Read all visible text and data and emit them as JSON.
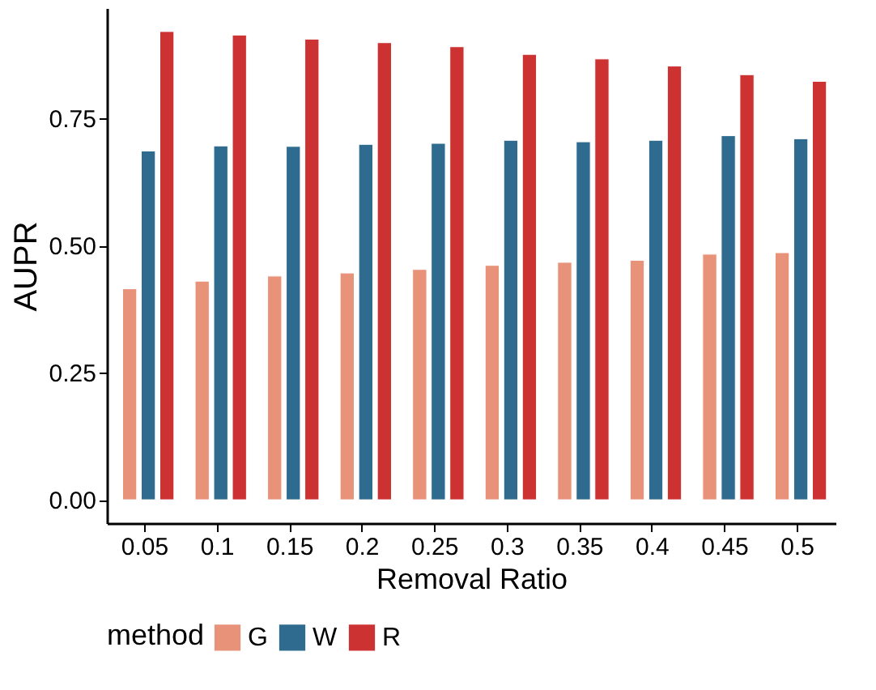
{
  "chart_data": {
    "type": "bar",
    "xlabel": "Removal Ratio",
    "ylabel": "AUPR",
    "legend_title": "method",
    "categories": [
      "0.05",
      "0.1",
      "0.15",
      "0.2",
      "0.25",
      "0.3",
      "0.35",
      "0.4",
      "0.45",
      "0.5"
    ],
    "series": [
      {
        "name": "G",
        "color": "#e8927a",
        "values": [
          0.415,
          0.43,
          0.44,
          0.446,
          0.453,
          0.461,
          0.467,
          0.471,
          0.483,
          0.486
        ]
      },
      {
        "name": "W",
        "color": "#2e6b8f",
        "values": [
          0.686,
          0.696,
          0.695,
          0.699,
          0.701,
          0.707,
          0.704,
          0.707,
          0.716,
          0.71
        ]
      },
      {
        "name": "R",
        "color": "#cd3232",
        "values": [
          0.921,
          0.914,
          0.906,
          0.899,
          0.891,
          0.876,
          0.867,
          0.853,
          0.836,
          0.823
        ]
      }
    ],
    "ylim": [
      -0.046,
      0.967
    ],
    "yticks": [
      {
        "value": 0,
        "label": "0.00"
      },
      0.25,
      {
        "value": 0.5,
        "label": "0.50"
      },
      0.75
    ],
    "grid": false,
    "legend": "bottom"
  }
}
